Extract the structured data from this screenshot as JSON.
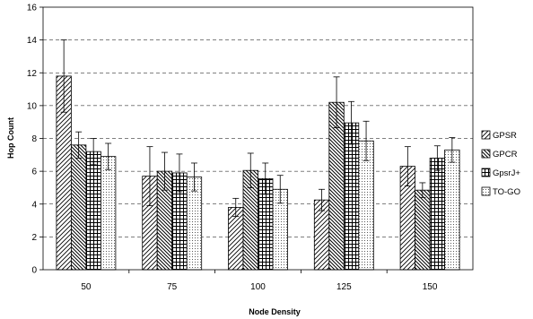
{
  "chart_data": {
    "type": "bar",
    "title": "",
    "xlabel": "Node Density",
    "ylabel": "Hop Count",
    "ylim": [
      0,
      16
    ],
    "yticks": [
      0,
      2,
      4,
      6,
      8,
      10,
      12,
      14,
      16
    ],
    "grid": "horizontal dashed",
    "legend_position": "right",
    "categories": [
      "50",
      "75",
      "100",
      "125",
      "150"
    ],
    "series": [
      {
        "name": "GPSR",
        "pattern": "diag-up",
        "values": [
          11.8,
          5.7,
          3.8,
          4.25,
          6.3
        ],
        "errors": [
          2.2,
          1.8,
          0.55,
          0.65,
          1.2
        ]
      },
      {
        "name": "GPCR",
        "pattern": "diag-down",
        "values": [
          7.6,
          6.0,
          6.05,
          10.2,
          4.85
        ],
        "errors": [
          0.8,
          1.15,
          1.05,
          1.55,
          0.45
        ]
      },
      {
        "name": "GpsrJ+",
        "pattern": "grid",
        "values": [
          7.2,
          5.9,
          5.55,
          8.95,
          6.8
        ],
        "errors": [
          0.8,
          1.15,
          0.95,
          1.3,
          0.75
        ]
      },
      {
        "name": "TO-GO",
        "pattern": "dots",
        "values": [
          6.9,
          5.65,
          4.9,
          7.85,
          7.3
        ],
        "errors": [
          0.8,
          0.85,
          0.85,
          1.2,
          0.75
        ]
      }
    ]
  }
}
